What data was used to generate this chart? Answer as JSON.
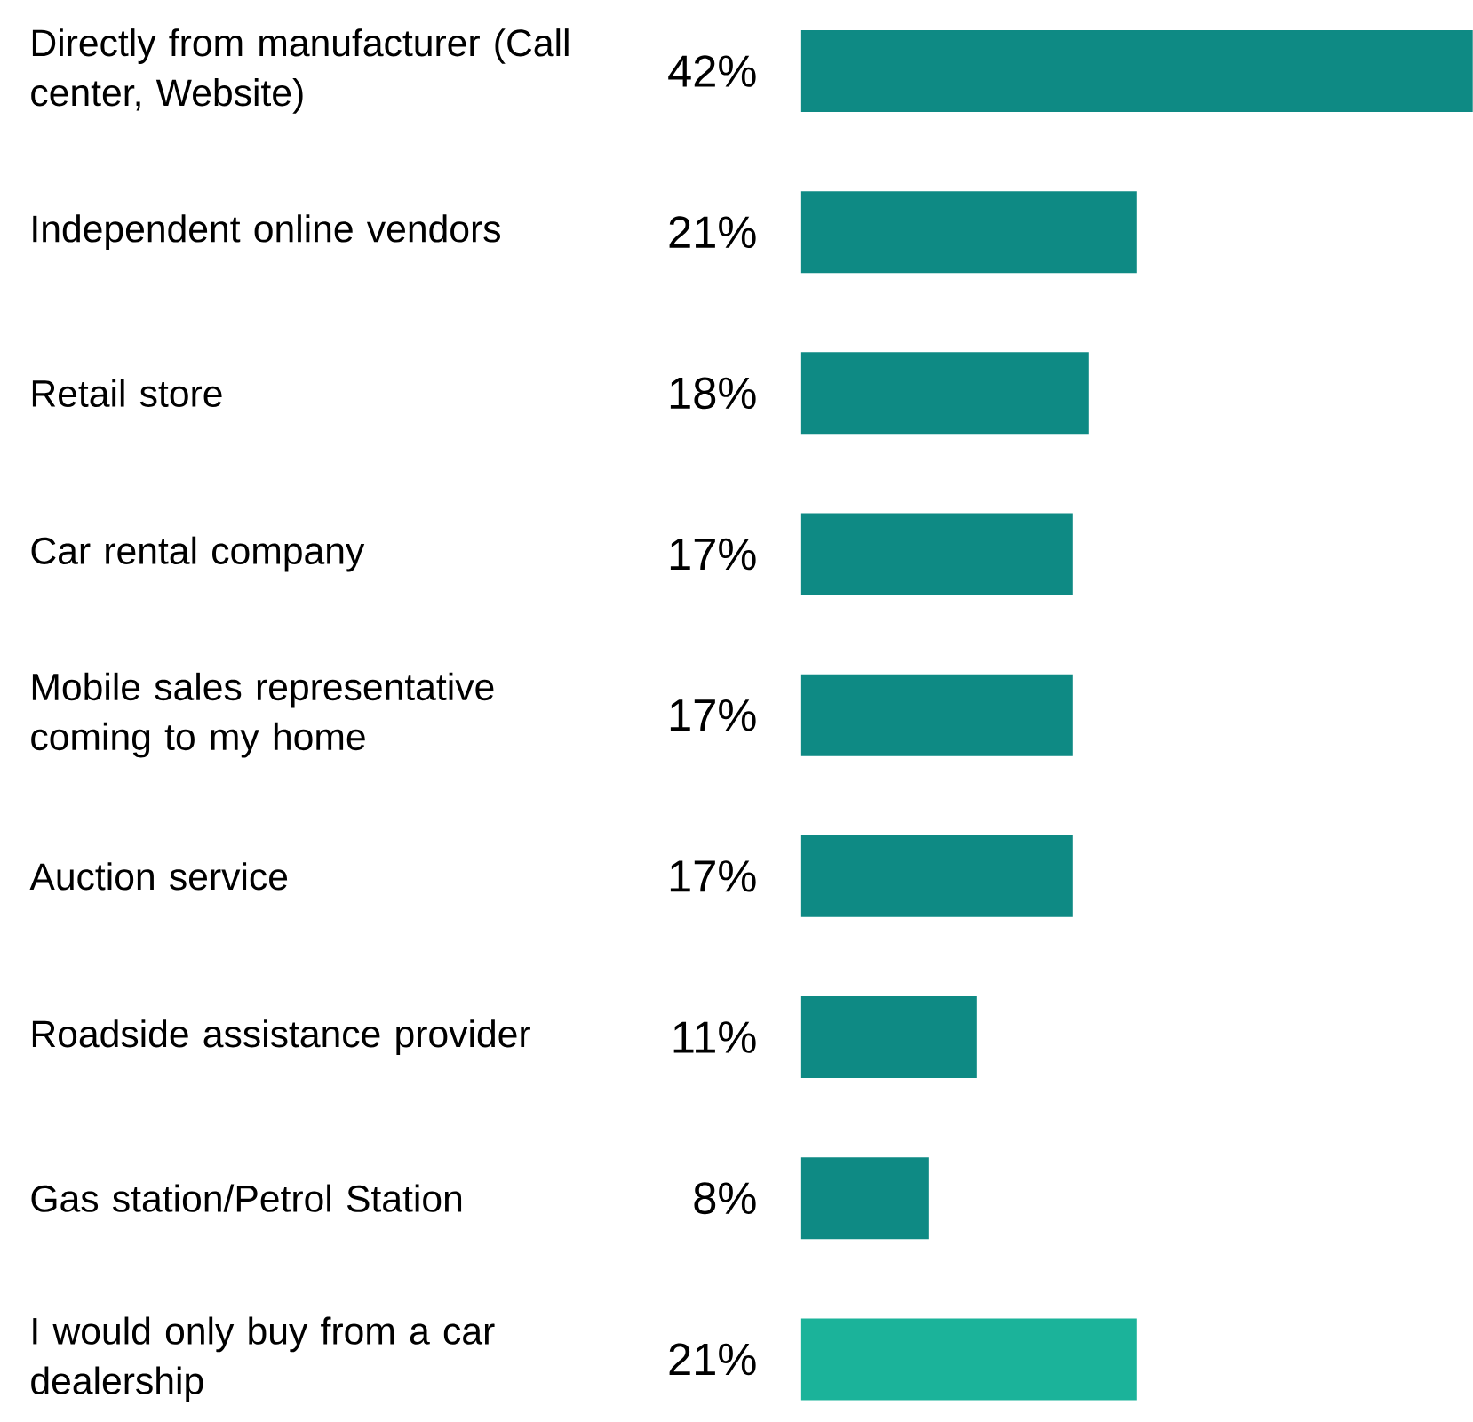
{
  "chart_data": {
    "type": "bar",
    "orientation": "horizontal",
    "categories": [
      "Directly from manufacturer (Call center, Website)",
      "Independent online vendors",
      "Retail store",
      "Car rental company",
      "Mobile sales representative coming to my home",
      "Auction service",
      "Roadside assistance provider",
      "Gas station/Petrol Station",
      "I would only buy from a car dealership"
    ],
    "values": [
      42,
      21,
      18,
      17,
      17,
      17,
      11,
      8,
      21
    ],
    "value_labels": [
      "42%",
      "21%",
      "18%",
      "17%",
      "17%",
      "17%",
      "11%",
      "8%",
      "21%"
    ],
    "colors": [
      "#0e8a84",
      "#0e8a84",
      "#0e8a84",
      "#0e8a84",
      "#0e8a84",
      "#0e8a84",
      "#0e8a84",
      "#0e8a84",
      "#1bb39a"
    ],
    "tick_labels": "y"
  }
}
